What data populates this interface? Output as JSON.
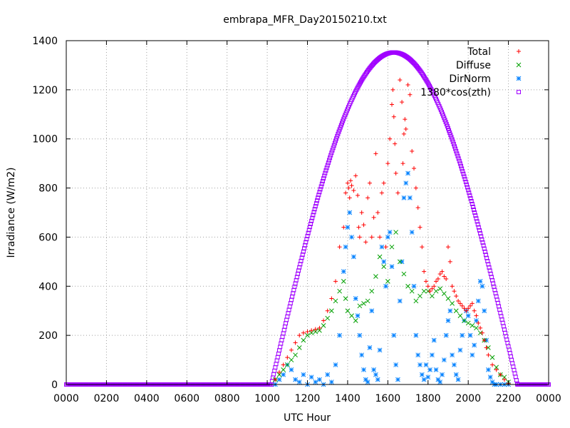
{
  "chart_data": {
    "type": "scatter",
    "title": "embrapa_MFR_Day20150210.txt",
    "xlabel": "UTC Hour",
    "ylabel": "Irradiance (W/m2)",
    "xlim": [
      0,
      24
    ],
    "ylim": [
      0,
      1400
    ],
    "x_ticks": [
      "0000",
      "0200",
      "0400",
      "0600",
      "0800",
      "1000",
      "1200",
      "1400",
      "1600",
      "1800",
      "2000",
      "2200",
      "0000"
    ],
    "y_ticks": [
      "0",
      "200",
      "400",
      "600",
      "800",
      "1000",
      "1200",
      "1400"
    ],
    "grid": true,
    "legend_position": "top-right",
    "series": [
      {
        "name": "Total",
        "marker": "+",
        "color": "#ff0000",
        "x": [
          10.4,
          10.6,
          10.8,
          11.0,
          11.2,
          11.4,
          11.6,
          11.8,
          12.0,
          12.2,
          12.4,
          12.6,
          12.8,
          13.0,
          13.2,
          13.4,
          13.6,
          13.8,
          13.9,
          14.0,
          14.05,
          14.1,
          14.15,
          14.2,
          14.3,
          14.4,
          14.5,
          14.55,
          14.6,
          14.7,
          14.8,
          14.9,
          15.0,
          15.1,
          15.2,
          15.3,
          15.4,
          15.5,
          15.6,
          15.7,
          15.8,
          15.9,
          16.0,
          16.1,
          16.2,
          16.25,
          16.3,
          16.35,
          16.4,
          16.5,
          16.6,
          16.7,
          16.75,
          16.8,
          16.85,
          16.9,
          17.0,
          17.1,
          17.2,
          17.3,
          17.4,
          17.5,
          17.6,
          17.7,
          17.8,
          17.9,
          18.0,
          18.1,
          18.2,
          18.3,
          18.4,
          18.5,
          18.6,
          18.7,
          18.8,
          18.9,
          19.0,
          19.1,
          19.2,
          19.3,
          19.4,
          19.5,
          19.6,
          19.7,
          19.8,
          19.9,
          20.0,
          20.1,
          20.2,
          20.3,
          20.4,
          20.5,
          20.6,
          20.7,
          20.8,
          20.9,
          21.0,
          21.2,
          21.4,
          21.6,
          21.8,
          22.0
        ],
        "y": [
          20,
          50,
          80,
          110,
          140,
          170,
          200,
          210,
          215,
          220,
          225,
          230,
          260,
          300,
          350,
          420,
          560,
          640,
          780,
          820,
          800,
          760,
          830,
          810,
          790,
          850,
          770,
          640,
          600,
          700,
          650,
          580,
          760,
          820,
          600,
          680,
          940,
          700,
          600,
          780,
          820,
          560,
          900,
          1000,
          1140,
          1200,
          1090,
          980,
          860,
          780,
          1240,
          1150,
          900,
          1020,
          1080,
          1040,
          1220,
          1180,
          950,
          880,
          800,
          720,
          640,
          560,
          460,
          420,
          400,
          380,
          390,
          400,
          420,
          430,
          450,
          460,
          440,
          430,
          560,
          500,
          400,
          380,
          360,
          340,
          330,
          320,
          310,
          300,
          310,
          320,
          330,
          300,
          280,
          250,
          230,
          210,
          180,
          150,
          120,
          80,
          60,
          40,
          20,
          5
        ]
      },
      {
        "name": "Diffuse",
        "marker": "x",
        "color": "#00a000",
        "x": [
          10.4,
          10.6,
          10.8,
          11.0,
          11.2,
          11.4,
          11.6,
          11.8,
          12.0,
          12.2,
          12.4,
          12.6,
          12.8,
          13.0,
          13.2,
          13.4,
          13.6,
          13.8,
          13.9,
          14.0,
          14.2,
          14.4,
          14.6,
          14.8,
          15.0,
          15.2,
          15.4,
          15.6,
          15.8,
          16.0,
          16.2,
          16.4,
          16.6,
          16.8,
          17.0,
          17.2,
          17.4,
          17.6,
          17.8,
          18.0,
          18.2,
          18.4,
          18.6,
          18.8,
          19.0,
          19.2,
          19.4,
          19.6,
          19.8,
          20.0,
          20.2,
          20.4,
          20.6,
          20.8,
          21.0,
          21.2,
          21.4,
          21.6,
          21.8,
          22.0
        ],
        "y": [
          20,
          40,
          60,
          80,
          100,
          120,
          150,
          180,
          200,
          210,
          215,
          220,
          240,
          270,
          300,
          340,
          380,
          420,
          350,
          300,
          280,
          260,
          320,
          330,
          340,
          380,
          440,
          520,
          480,
          420,
          560,
          620,
          500,
          450,
          400,
          380,
          340,
          360,
          380,
          380,
          360,
          380,
          390,
          370,
          350,
          330,
          300,
          280,
          260,
          250,
          240,
          230,
          210,
          180,
          150,
          110,
          70,
          40,
          30,
          10
        ]
      },
      {
        "name": "DirNorm",
        "marker": "*",
        "color": "#0080ff",
        "x": [
          10.4,
          10.6,
          10.8,
          11.0,
          11.2,
          11.4,
          11.6,
          11.8,
          12.0,
          12.2,
          12.4,
          12.6,
          12.8,
          13.0,
          13.2,
          13.4,
          13.6,
          13.8,
          13.9,
          14.0,
          14.1,
          14.2,
          14.3,
          14.4,
          14.5,
          14.6,
          14.7,
          14.8,
          14.9,
          15.0,
          15.1,
          15.2,
          15.3,
          15.4,
          15.5,
          15.6,
          15.7,
          15.8,
          15.9,
          16.0,
          16.1,
          16.2,
          16.3,
          16.4,
          16.5,
          16.6,
          16.7,
          16.8,
          16.9,
          17.0,
          17.1,
          17.2,
          17.3,
          17.4,
          17.5,
          17.6,
          17.7,
          17.8,
          17.9,
          18.0,
          18.1,
          18.2,
          18.3,
          18.4,
          18.5,
          18.6,
          18.7,
          18.8,
          18.9,
          19.0,
          19.1,
          19.2,
          19.3,
          19.4,
          19.5,
          19.6,
          19.7,
          19.8,
          19.9,
          20.0,
          20.1,
          20.2,
          20.3,
          20.4,
          20.5,
          20.6,
          20.7,
          20.8,
          20.9,
          21.0,
          21.1,
          21.2,
          21.3,
          21.4,
          21.6,
          21.8,
          22.0
        ],
        "y": [
          0,
          20,
          40,
          80,
          60,
          20,
          10,
          40,
          0,
          30,
          10,
          20,
          0,
          40,
          10,
          80,
          200,
          460,
          560,
          640,
          700,
          600,
          520,
          350,
          280,
          200,
          120,
          60,
          20,
          10,
          150,
          300,
          60,
          40,
          20,
          140,
          560,
          500,
          400,
          600,
          620,
          480,
          200,
          80,
          20,
          340,
          500,
          760,
          820,
          860,
          760,
          620,
          400,
          200,
          120,
          80,
          40,
          20,
          80,
          30,
          60,
          120,
          180,
          60,
          20,
          10,
          40,
          100,
          200,
          260,
          300,
          120,
          80,
          40,
          20,
          140,
          200,
          260,
          300,
          280,
          200,
          120,
          160,
          260,
          340,
          420,
          400,
          300,
          180,
          60,
          30,
          10,
          0,
          0,
          0,
          0,
          0
        ]
      },
      {
        "name": "1380*cos(zth)",
        "marker": "square",
        "color": "#a000ff",
        "curve": {
          "start_hour": 10.2,
          "end_hour": 22.45,
          "peak_hour": 16.3,
          "peak_value": 1352
        }
      }
    ]
  }
}
